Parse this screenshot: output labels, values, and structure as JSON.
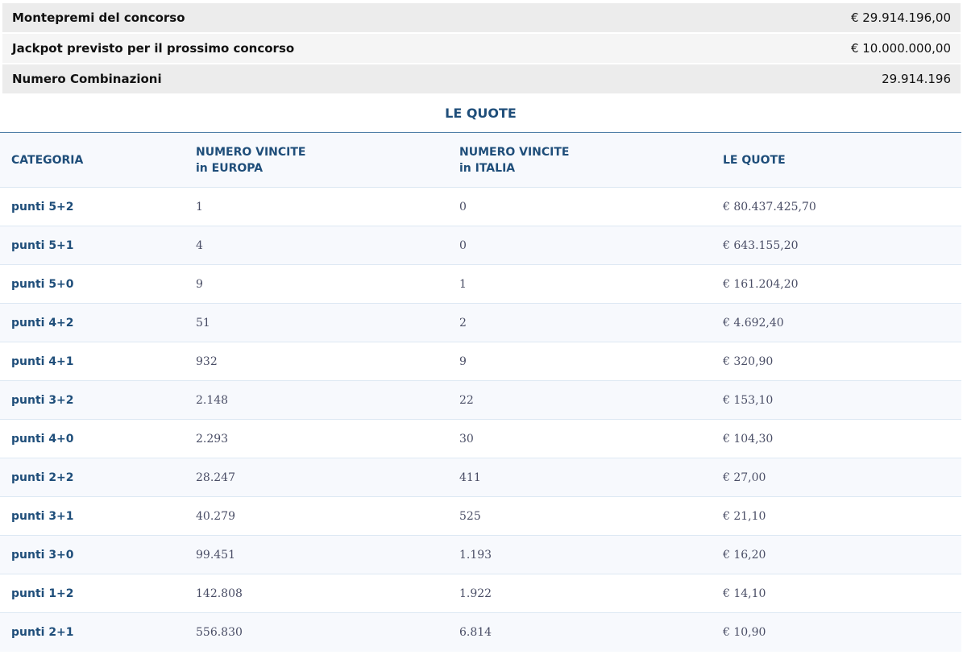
{
  "summary": [
    {
      "label": "Montepremi del concorso",
      "value": "€ 29.914.196,00"
    },
    {
      "label": "Jackpot previsto per il prossimo concorso",
      "value": "€ 10.000.000,00"
    },
    {
      "label": "Numero Combinazioni",
      "value": "29.914.196"
    }
  ],
  "quote_title": "LE QUOTE",
  "headers": {
    "categoria": "CATEGORIA",
    "europa_1": "NUMERO VINCITE",
    "europa_2": "in EUROPA",
    "italia_1": "NUMERO VINCITE",
    "italia_2": "in ITALIA",
    "quote": "LE QUOTE"
  },
  "rows": [
    [
      "punti 5+2",
      "1",
      "0",
      "€ 80.437.425,70"
    ],
    [
      "punti 5+1",
      "4",
      "0",
      "€ 643.155,20"
    ],
    [
      "punti 5+0",
      "9",
      "1",
      "€ 161.204,20"
    ],
    [
      "punti 4+2",
      "51",
      "2",
      "€ 4.692,40"
    ],
    [
      "punti 4+1",
      "932",
      "9",
      "€ 320,90"
    ],
    [
      "punti 3+2",
      "2.148",
      "22",
      "€ 153,10"
    ],
    [
      "punti 4+0",
      "2.293",
      "30",
      "€ 104,30"
    ],
    [
      "punti 2+2",
      "28.247",
      "411",
      "€ 27,00"
    ],
    [
      "punti 3+1",
      "40.279",
      "525",
      "€ 21,10"
    ],
    [
      "punti 3+0",
      "99.451",
      "1.193",
      "€ 16,20"
    ],
    [
      "punti 1+2",
      "142.808",
      "1.922",
      "€ 14,10"
    ],
    [
      "punti 2+1",
      "556.830",
      "6.814",
      "€ 10,90"
    ]
  ]
}
